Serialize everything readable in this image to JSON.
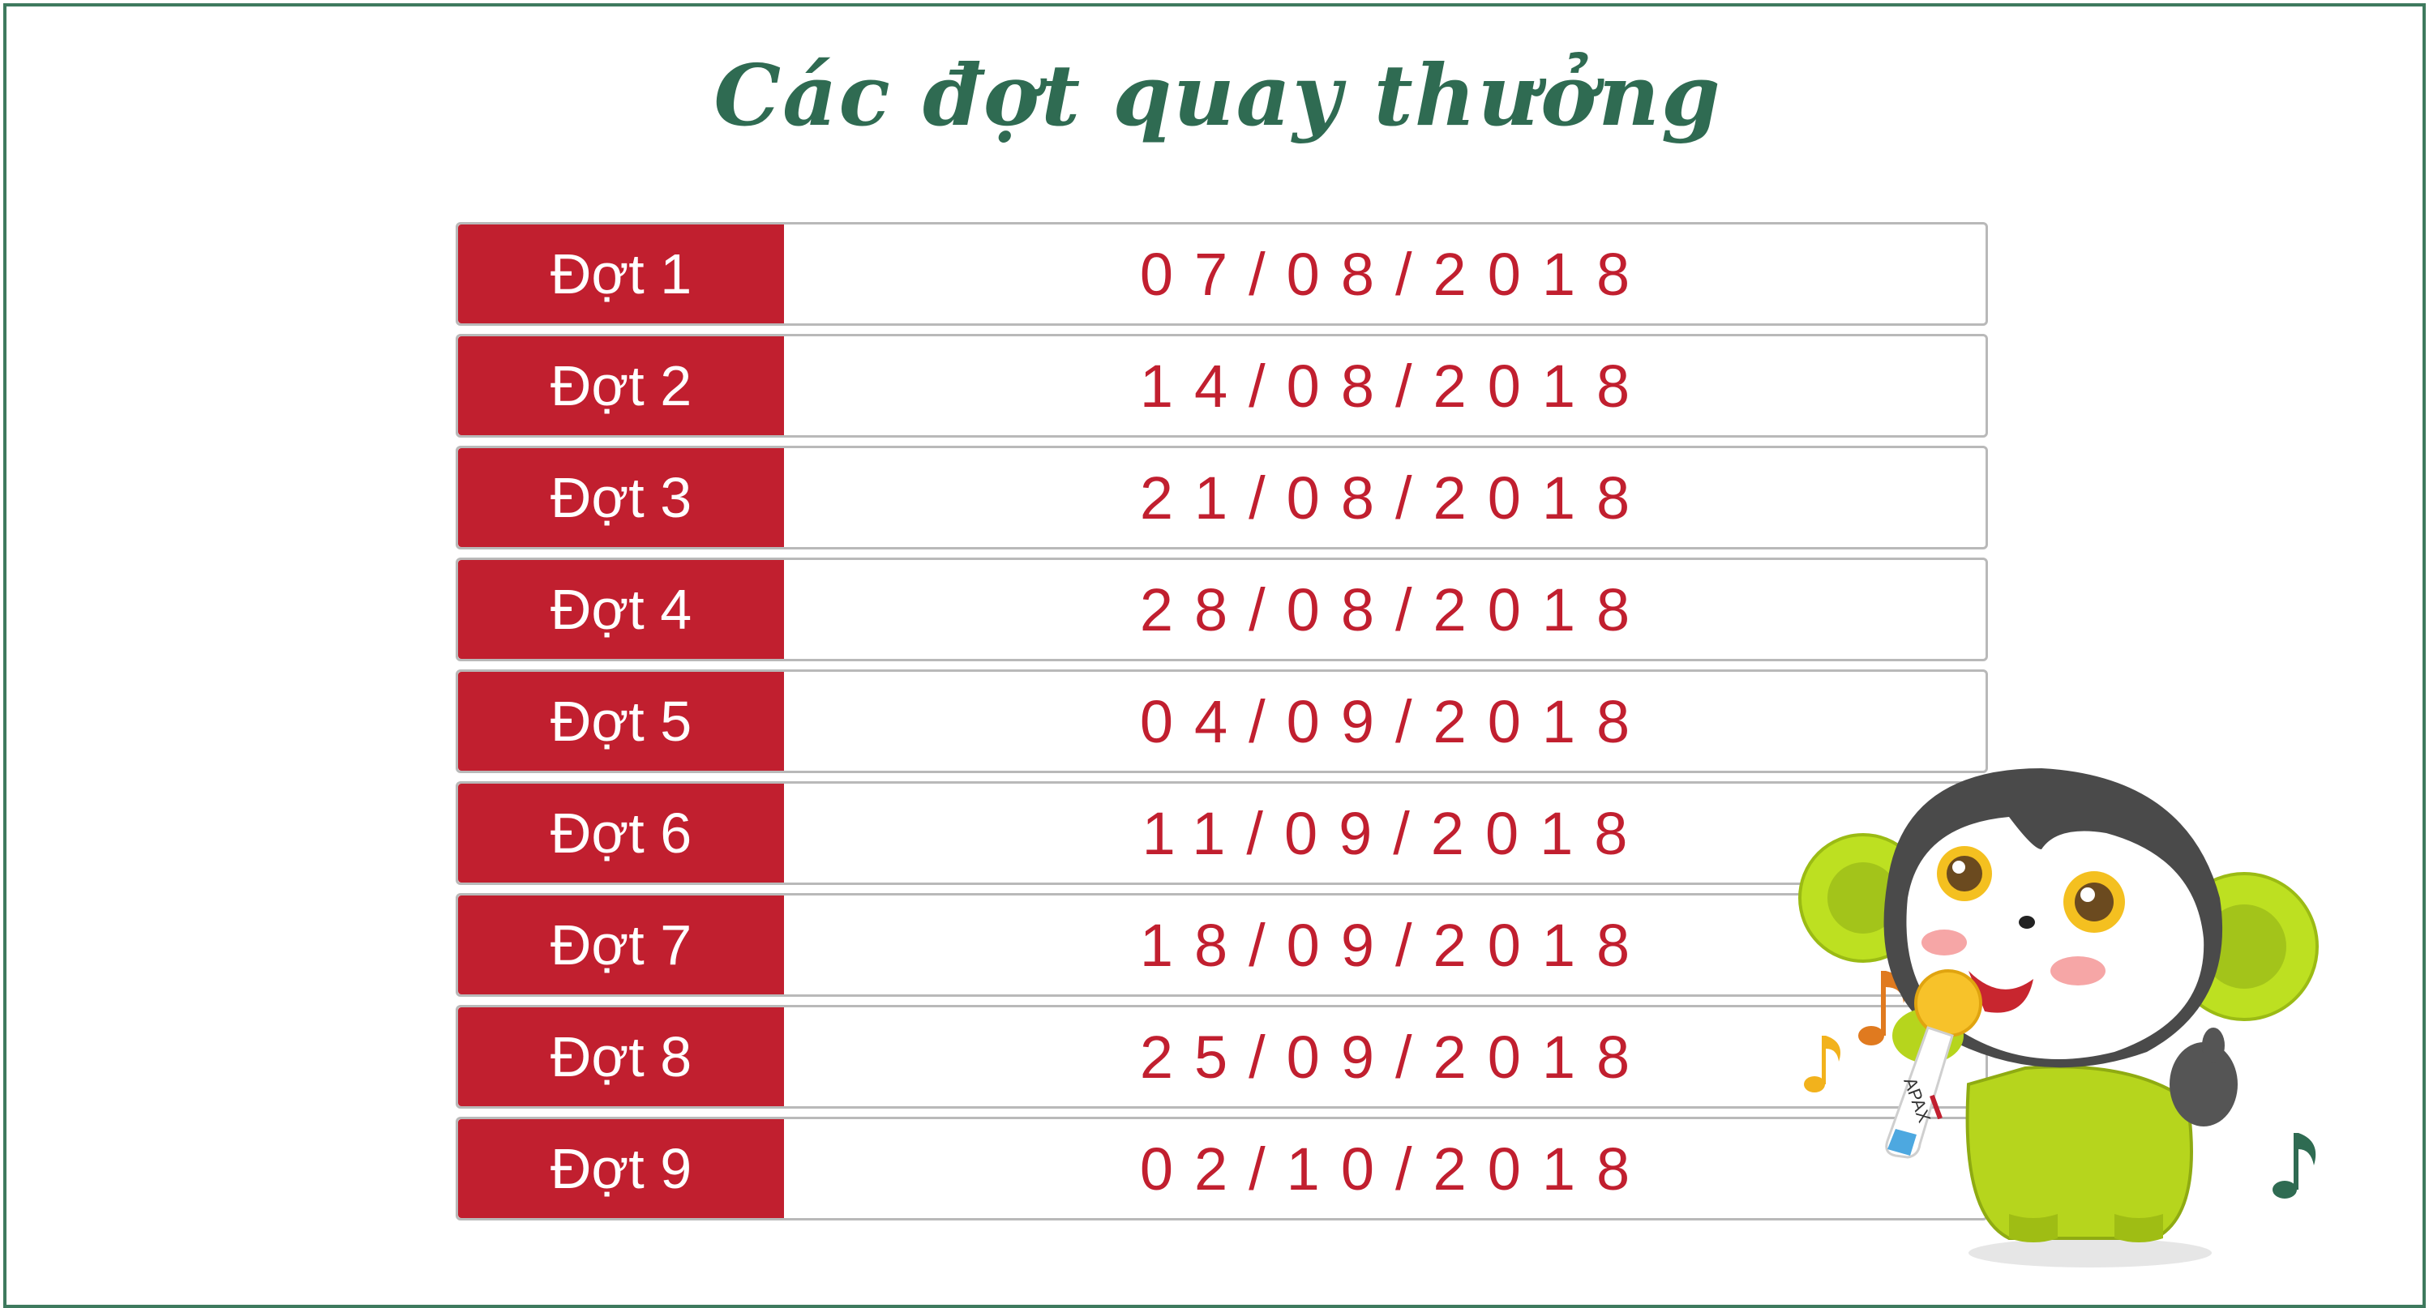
{
  "title": "Các đợt quay thưởng",
  "rounds": [
    {
      "label": "Đợt 1",
      "date": "07/08/2018"
    },
    {
      "label": "Đợt 2",
      "date": "14/08/2018"
    },
    {
      "label": "Đợt 3",
      "date": "21/08/2018"
    },
    {
      "label": "Đợt 4",
      "date": "28/08/2018"
    },
    {
      "label": "Đợt 5",
      "date": "04/09/2018"
    },
    {
      "label": "Đợt 6",
      "date": "11/09/2018"
    },
    {
      "label": "Đợt 7",
      "date": "18/09/2018"
    },
    {
      "label": "Đợt 8",
      "date": "25/09/2018"
    },
    {
      "label": "Đợt 9",
      "date": "02/10/2018"
    }
  ],
  "mascot": {
    "mic_text": "APAX"
  },
  "colors": {
    "accent_red": "#c11f2f",
    "title_green": "#2f6b52",
    "border_green": "#3e7a5e"
  }
}
